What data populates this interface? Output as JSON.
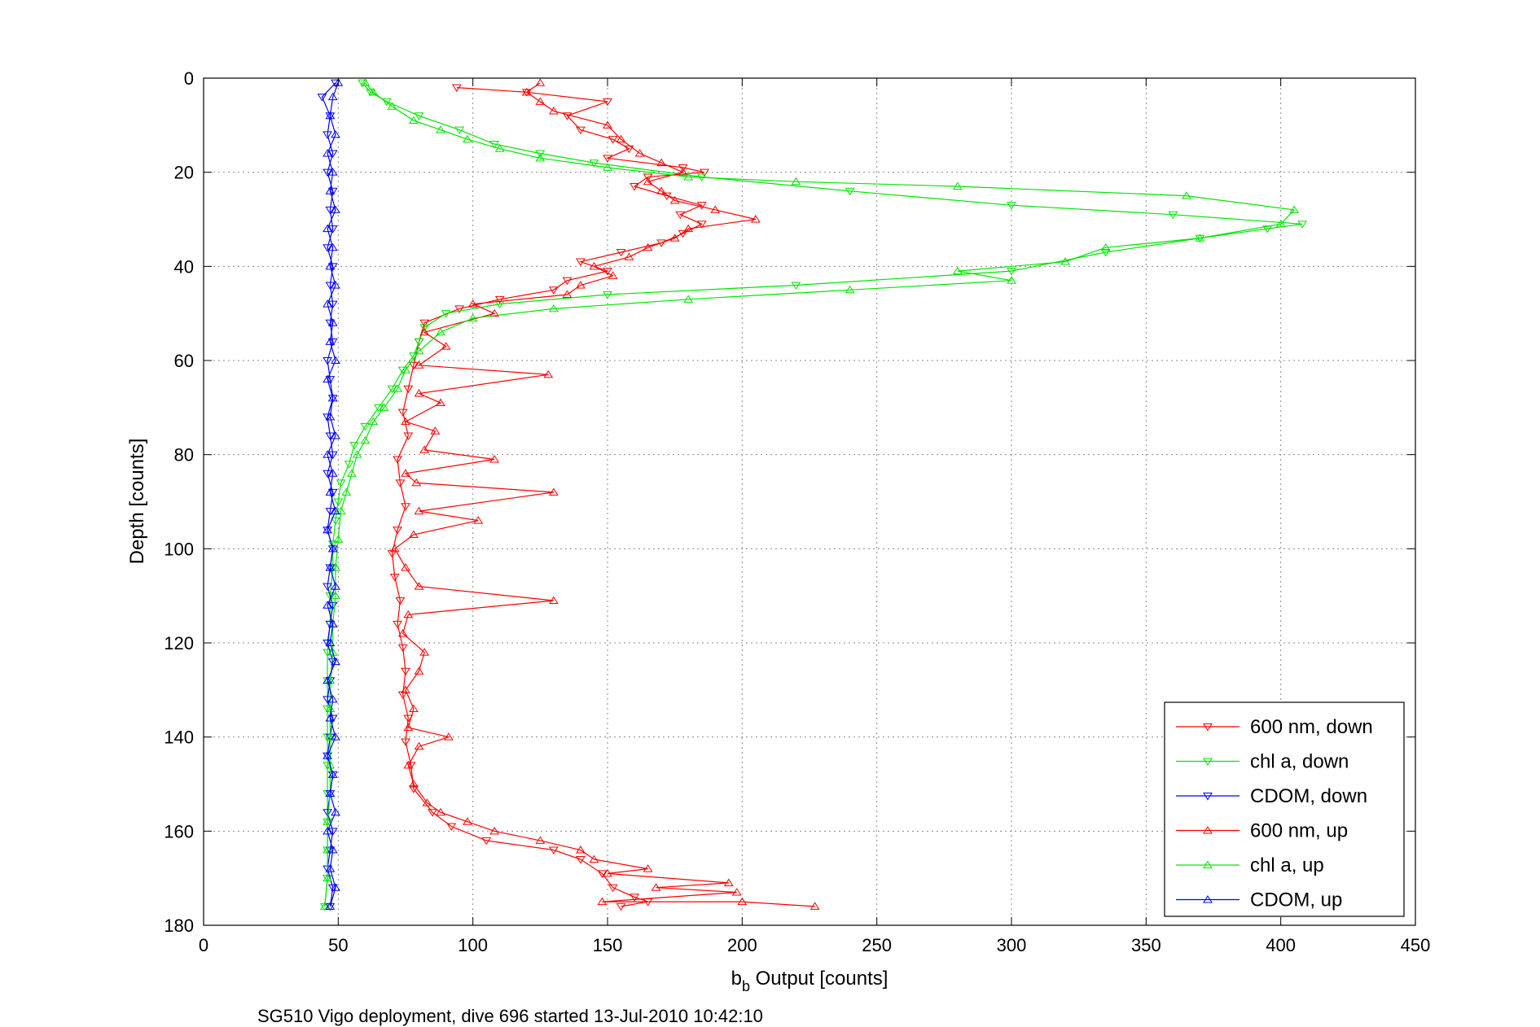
{
  "chart_data": {
    "type": "line",
    "xlabel_main": "b",
    "xlabel_sub": "b",
    "xlabel_rest": " Output [counts]",
    "ylabel": "Depth [counts]",
    "caption": "SG510 Vigo deployment, dive 696 started 13-Jul-2010 10:42:10",
    "xlim": [
      0,
      450
    ],
    "ylim": [
      0,
      180
    ],
    "y_reversed": true,
    "x_ticks": [
      0,
      50,
      100,
      150,
      200,
      250,
      300,
      350,
      400,
      450
    ],
    "y_ticks": [
      0,
      20,
      40,
      60,
      80,
      100,
      120,
      140,
      160,
      180
    ],
    "x_tick_labels": [
      "0",
      "50",
      "100",
      "150",
      "200",
      "250",
      "300",
      "350",
      "400",
      "450"
    ],
    "y_tick_labels": [
      "0",
      "20",
      "40",
      "60",
      "80",
      "100",
      "120",
      "140",
      "160",
      "180"
    ],
    "grid": true,
    "legend_position": "bottom-right",
    "series": [
      {
        "name": "600 nm, down",
        "color": "#ff0000",
        "marker": "triangle-down",
        "points": [
          [
            94,
            2
          ],
          [
            120,
            3
          ],
          [
            150,
            5
          ],
          [
            135,
            8
          ],
          [
            140,
            11
          ],
          [
            152,
            13
          ],
          [
            158,
            15
          ],
          [
            150,
            17
          ],
          [
            178,
            19
          ],
          [
            186,
            20
          ],
          [
            165,
            21
          ],
          [
            160,
            23
          ],
          [
            172,
            25
          ],
          [
            185,
            27
          ],
          [
            177,
            29
          ],
          [
            185,
            31
          ],
          [
            178,
            33
          ],
          [
            170,
            35
          ],
          [
            155,
            37
          ],
          [
            140,
            39
          ],
          [
            150,
            41
          ],
          [
            135,
            43
          ],
          [
            130,
            45
          ],
          [
            110,
            47
          ],
          [
            95,
            49
          ],
          [
            82,
            52
          ],
          [
            80,
            56
          ],
          [
            78,
            61
          ],
          [
            76,
            66
          ],
          [
            74,
            71
          ],
          [
            76,
            76
          ],
          [
            72,
            81
          ],
          [
            73,
            86
          ],
          [
            75,
            91
          ],
          [
            72,
            96
          ],
          [
            70,
            101
          ],
          [
            71,
            106
          ],
          [
            73,
            111
          ],
          [
            72,
            116
          ],
          [
            74,
            121
          ],
          [
            75,
            126
          ],
          [
            74,
            131
          ],
          [
            76,
            136
          ],
          [
            75,
            141
          ],
          [
            77,
            146
          ],
          [
            78,
            151
          ],
          [
            85,
            156
          ],
          [
            92,
            159
          ],
          [
            105,
            162
          ],
          [
            130,
            164
          ],
          [
            140,
            166
          ],
          [
            148,
            169
          ],
          [
            152,
            172
          ],
          [
            160,
            174
          ],
          [
            165,
            175
          ],
          [
            155,
            176
          ]
        ]
      },
      {
        "name": "chl a, down",
        "color": "#00e600",
        "marker": "triangle-down",
        "points": [
          [
            59,
            1
          ],
          [
            62,
            3
          ],
          [
            68,
            5
          ],
          [
            80,
            8
          ],
          [
            95,
            11
          ],
          [
            108,
            14
          ],
          [
            125,
            16
          ],
          [
            145,
            18
          ],
          [
            185,
            21
          ],
          [
            240,
            24
          ],
          [
            300,
            27
          ],
          [
            360,
            29
          ],
          [
            408,
            31
          ],
          [
            395,
            32
          ],
          [
            370,
            34
          ],
          [
            335,
            37
          ],
          [
            300,
            41
          ],
          [
            220,
            44
          ],
          [
            150,
            46
          ],
          [
            110,
            48
          ],
          [
            90,
            50
          ],
          [
            82,
            53
          ],
          [
            80,
            56
          ],
          [
            78,
            59
          ],
          [
            74,
            62
          ],
          [
            70,
            66
          ],
          [
            65,
            70
          ],
          [
            60,
            74
          ],
          [
            56,
            78
          ],
          [
            54,
            82
          ],
          [
            51,
            86
          ],
          [
            50,
            90
          ],
          [
            49,
            94
          ],
          [
            48,
            99
          ],
          [
            48,
            104
          ],
          [
            47,
            110
          ],
          [
            47,
            116
          ],
          [
            46,
            122
          ],
          [
            46,
            128
          ],
          [
            46,
            134
          ],
          [
            46,
            140
          ],
          [
            46,
            146
          ],
          [
            46,
            152
          ],
          [
            46,
            158
          ],
          [
            46,
            164
          ],
          [
            46,
            170
          ],
          [
            45,
            176
          ]
        ]
      },
      {
        "name": "CDOM, down",
        "color": "#0000ff",
        "marker": "triangle-down",
        "points": [
          [
            49,
            1
          ],
          [
            44,
            4
          ],
          [
            47,
            8
          ],
          [
            46,
            12
          ],
          [
            48,
            16
          ],
          [
            46,
            20
          ],
          [
            48,
            24
          ],
          [
            47,
            28
          ],
          [
            48,
            32
          ],
          [
            46,
            36
          ],
          [
            48,
            40
          ],
          [
            47,
            44
          ],
          [
            48,
            48
          ],
          [
            47,
            52
          ],
          [
            48,
            56
          ],
          [
            46,
            60
          ],
          [
            47,
            64
          ],
          [
            48,
            68
          ],
          [
            46,
            72
          ],
          [
            47,
            76
          ],
          [
            48,
            80
          ],
          [
            46,
            84
          ],
          [
            48,
            88
          ],
          [
            47,
            92
          ],
          [
            46,
            96
          ],
          [
            48,
            100
          ],
          [
            47,
            104
          ],
          [
            46,
            108
          ],
          [
            48,
            112
          ],
          [
            47,
            116
          ],
          [
            46,
            120
          ],
          [
            48,
            124
          ],
          [
            47,
            128
          ],
          [
            46,
            132
          ],
          [
            48,
            136
          ],
          [
            47,
            140
          ],
          [
            46,
            144
          ],
          [
            48,
            148
          ],
          [
            47,
            152
          ],
          [
            46,
            156
          ],
          [
            48,
            160
          ],
          [
            47,
            164
          ],
          [
            46,
            168
          ],
          [
            48,
            172
          ],
          [
            47,
            176
          ]
        ]
      },
      {
        "name": "600 nm, up",
        "color": "#ff0000",
        "marker": "triangle-up",
        "points": [
          [
            227,
            176
          ],
          [
            200,
            175
          ],
          [
            148,
            175
          ],
          [
            198,
            173
          ],
          [
            168,
            172
          ],
          [
            195,
            171
          ],
          [
            150,
            169
          ],
          [
            165,
            168
          ],
          [
            145,
            166
          ],
          [
            140,
            164
          ],
          [
            125,
            162
          ],
          [
            108,
            160
          ],
          [
            98,
            158
          ],
          [
            88,
            156
          ],
          [
            83,
            154
          ],
          [
            78,
            150
          ],
          [
            76,
            146
          ],
          [
            80,
            142
          ],
          [
            91,
            140
          ],
          [
            76,
            138
          ],
          [
            78,
            134
          ],
          [
            75,
            130
          ],
          [
            80,
            126
          ],
          [
            82,
            122
          ],
          [
            74,
            118
          ],
          [
            76,
            114
          ],
          [
            130,
            111
          ],
          [
            80,
            108
          ],
          [
            75,
            104
          ],
          [
            71,
            100
          ],
          [
            78,
            97
          ],
          [
            102,
            94
          ],
          [
            80,
            92
          ],
          [
            130,
            88
          ],
          [
            79,
            86
          ],
          [
            75,
            84
          ],
          [
            108,
            81
          ],
          [
            82,
            79
          ],
          [
            86,
            75
          ],
          [
            75,
            73
          ],
          [
            88,
            69
          ],
          [
            80,
            67
          ],
          [
            128,
            63
          ],
          [
            80,
            61
          ],
          [
            90,
            57
          ],
          [
            82,
            54
          ],
          [
            108,
            50
          ],
          [
            100,
            48
          ],
          [
            135,
            46
          ],
          [
            140,
            44
          ],
          [
            152,
            42
          ],
          [
            145,
            40
          ],
          [
            158,
            38
          ],
          [
            165,
            36
          ],
          [
            175,
            34
          ],
          [
            180,
            32
          ],
          [
            205,
            30
          ],
          [
            190,
            28
          ],
          [
            175,
            26
          ],
          [
            170,
            24
          ],
          [
            165,
            22
          ],
          [
            178,
            20
          ],
          [
            170,
            18
          ],
          [
            162,
            16
          ],
          [
            155,
            13
          ],
          [
            150,
            10
          ],
          [
            130,
            7
          ],
          [
            125,
            5
          ],
          [
            120,
            3
          ],
          [
            125,
            1
          ]
        ]
      },
      {
        "name": "chl a, up",
        "color": "#00e600",
        "marker": "triangle-up",
        "points": [
          [
            45,
            176
          ],
          [
            46,
            170
          ],
          [
            46,
            164
          ],
          [
            46,
            158
          ],
          [
            47,
            152
          ],
          [
            47,
            146
          ],
          [
            47,
            140
          ],
          [
            47,
            134
          ],
          [
            47,
            128
          ],
          [
            48,
            122
          ],
          [
            48,
            116
          ],
          [
            49,
            110
          ],
          [
            49,
            104
          ],
          [
            50,
            98
          ],
          [
            51,
            92
          ],
          [
            53,
            88
          ],
          [
            55,
            84
          ],
          [
            57,
            80
          ],
          [
            60,
            77
          ],
          [
            63,
            73
          ],
          [
            67,
            70
          ],
          [
            72,
            66
          ],
          [
            75,
            62
          ],
          [
            80,
            58
          ],
          [
            88,
            54
          ],
          [
            100,
            51
          ],
          [
            130,
            49
          ],
          [
            180,
            47
          ],
          [
            240,
            45
          ],
          [
            300,
            43
          ],
          [
            280,
            41
          ],
          [
            320,
            39
          ],
          [
            335,
            36
          ],
          [
            370,
            34
          ],
          [
            400,
            31
          ],
          [
            405,
            28
          ],
          [
            365,
            25
          ],
          [
            280,
            23
          ],
          [
            220,
            22
          ],
          [
            180,
            21
          ],
          [
            150,
            19
          ],
          [
            125,
            17
          ],
          [
            110,
            15
          ],
          [
            98,
            13
          ],
          [
            88,
            11
          ],
          [
            78,
            9
          ],
          [
            70,
            6
          ],
          [
            63,
            3
          ],
          [
            60,
            1
          ]
        ]
      },
      {
        "name": "CDOM, up",
        "color": "#0000ff",
        "marker": "triangle-up",
        "points": [
          [
            47,
            176
          ],
          [
            49,
            172
          ],
          [
            47,
            168
          ],
          [
            48,
            164
          ],
          [
            46,
            160
          ],
          [
            49,
            156
          ],
          [
            47,
            152
          ],
          [
            48,
            148
          ],
          [
            46,
            144
          ],
          [
            49,
            140
          ],
          [
            47,
            136
          ],
          [
            48,
            132
          ],
          [
            46,
            128
          ],
          [
            49,
            124
          ],
          [
            47,
            120
          ],
          [
            48,
            116
          ],
          [
            46,
            112
          ],
          [
            49,
            108
          ],
          [
            47,
            104
          ],
          [
            48,
            100
          ],
          [
            46,
            96
          ],
          [
            49,
            92
          ],
          [
            47,
            88
          ],
          [
            48,
            84
          ],
          [
            46,
            80
          ],
          [
            49,
            76
          ],
          [
            47,
            72
          ],
          [
            48,
            68
          ],
          [
            46,
            64
          ],
          [
            49,
            60
          ],
          [
            47,
            56
          ],
          [
            48,
            52
          ],
          [
            46,
            48
          ],
          [
            49,
            44
          ],
          [
            47,
            40
          ],
          [
            48,
            36
          ],
          [
            46,
            32
          ],
          [
            49,
            28
          ],
          [
            47,
            24
          ],
          [
            48,
            20
          ],
          [
            46,
            16
          ],
          [
            49,
            12
          ],
          [
            47,
            8
          ],
          [
            48,
            4
          ],
          [
            50,
            1
          ]
        ]
      }
    ]
  }
}
